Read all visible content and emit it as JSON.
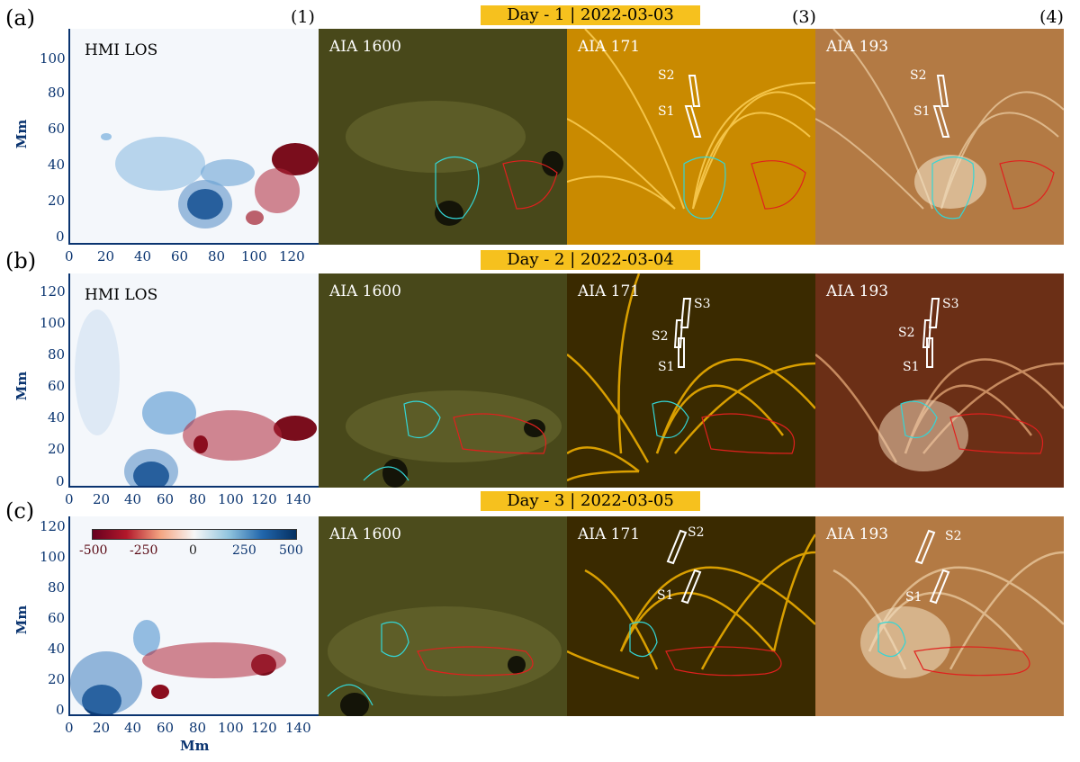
{
  "rows": [
    {
      "label": "(a)",
      "banner": "Day - 1 | 2022-03-03",
      "hmi": "HMI LOS",
      "p2": "AIA 1600",
      "p3": "AIA 171",
      "p4": "AIA 193",
      "xticks": [
        "0",
        "20",
        "40",
        "60",
        "80",
        "100",
        "120"
      ],
      "yticks": [
        "0",
        "20",
        "40",
        "60",
        "80",
        "100"
      ],
      "ylabel": "Mm",
      "slits": [
        "S2",
        "S1"
      ]
    },
    {
      "label": "(b)",
      "banner": "Day - 2 | 2022-03-04",
      "hmi": "HMI LOS",
      "p2": "AIA 1600",
      "p3": "AIA 171",
      "p4": "AIA 193",
      "xticks": [
        "0",
        "20",
        "40",
        "60",
        "80",
        "100",
        "120",
        "140"
      ],
      "yticks": [
        "0",
        "20",
        "40",
        "60",
        "80",
        "100",
        "120"
      ],
      "ylabel": "Mm",
      "slits": [
        "S3",
        "S2",
        "S1"
      ]
    },
    {
      "label": "(c)",
      "banner": "Day - 3 | 2022-03-05",
      "hmi": "",
      "p2": "AIA 1600",
      "p3": "AIA 171",
      "p4": "AIA 193",
      "xticks": [
        "0",
        "20",
        "40",
        "60",
        "80",
        "100",
        "120",
        "140"
      ],
      "yticks": [
        "0",
        "20",
        "40",
        "60",
        "80",
        "100",
        "120"
      ],
      "ylabel": "Mm",
      "xlabel": "Mm",
      "slits": [
        "S2",
        "S1"
      ]
    }
  ],
  "columns": [
    "(1)",
    "(3)",
    "(4)"
  ],
  "colorbar": {
    "ticks": [
      "-500",
      "-250",
      "0",
      "250",
      "500"
    ]
  },
  "colors": {
    "banner": "#f6c11e",
    "axis": "#0a3470",
    "pos": "#1565b0",
    "neg": "#8b0d1e",
    "contour_pos": "#33d6d6",
    "contour_neg": "#e0201e"
  }
}
